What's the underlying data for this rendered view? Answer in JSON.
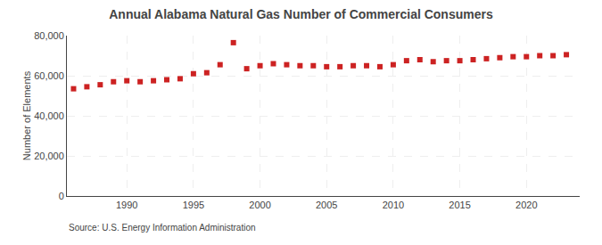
{
  "chart_data": {
    "type": "scatter",
    "title": "Annual Alabama Natural Gas Number of Commercial Consumers",
    "ylabel": "Number of Elements",
    "annotation": "Source: U.S. Energy Information Administration",
    "x": [
      1986,
      1987,
      1988,
      1989,
      1990,
      1991,
      1992,
      1993,
      1994,
      1995,
      1996,
      1997,
      1998,
      1999,
      2000,
      2001,
      2002,
      2003,
      2004,
      2005,
      2006,
      2007,
      2008,
      2009,
      2010,
      2011,
      2012,
      2013,
      2014,
      2015,
      2016,
      2017,
      2018,
      2019,
      2020,
      2021,
      2022,
      2023
    ],
    "values": [
      53500,
      54500,
      55500,
      57000,
      57500,
      57000,
      57500,
      58000,
      58500,
      61000,
      61500,
      65500,
      76500,
      63500,
      65000,
      66000,
      65500,
      65000,
      65000,
      64500,
      64500,
      65000,
      65000,
      64500,
      65500,
      67500,
      68000,
      67000,
      67500,
      67500,
      68000,
      68500,
      69000,
      69500,
      69500,
      70000,
      70000,
      70500
    ],
    "color": "#cc2222",
    "marker": "square",
    "xlim": [
      1985.5,
      2024
    ],
    "xticks": [
      1990,
      1995,
      2000,
      2005,
      2010,
      2015,
      2020
    ],
    "ylim": [
      0,
      80000
    ],
    "yticks": [
      0,
      {
        "value": 20000,
        "label": "20,000"
      },
      {
        "value": 40000,
        "label": "40,000"
      },
      {
        "value": 60000,
        "label": "60,000"
      },
      {
        "value": 80000,
        "label": "80,000"
      }
    ],
    "grid": true
  }
}
